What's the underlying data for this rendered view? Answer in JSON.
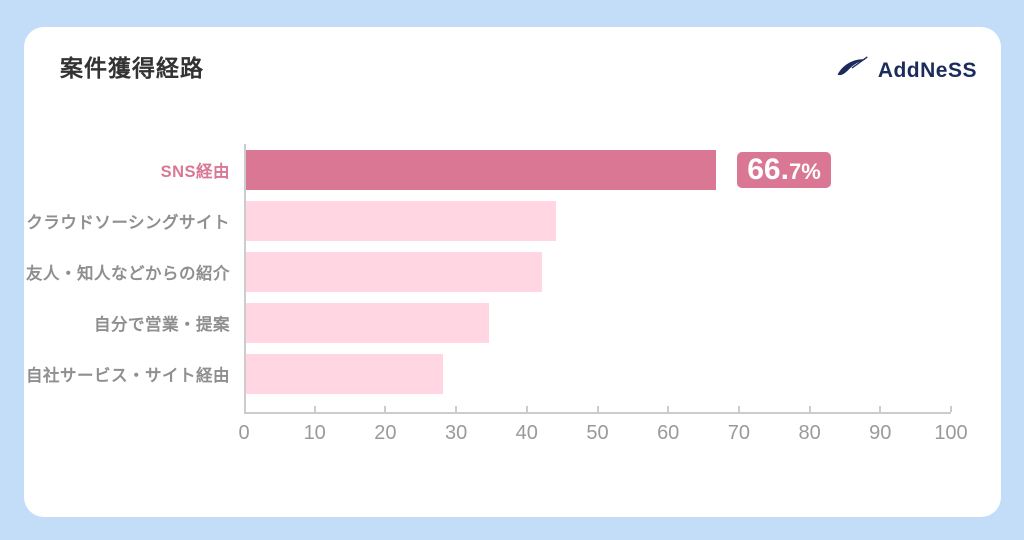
{
  "page": {
    "background": "#C3DDF9",
    "card_background": "#FFFFFF"
  },
  "header": {
    "title": "案件獲得経路",
    "logo_text": "AddNeSS",
    "logo_color": "#1B2B5B"
  },
  "chart_data": {
    "type": "bar",
    "orientation": "horizontal",
    "title": "案件獲得経路",
    "categories": [
      "SNS経由",
      "クラウドソーシングサイト",
      "友人・知人などからの紹介",
      "自分で営業・提案",
      "自社サービス・サイト経由"
    ],
    "values": [
      66.7,
      44,
      42,
      34.5,
      28
    ],
    "xlabel": "",
    "ylabel": "",
    "xlim": [
      0,
      100
    ],
    "xticks": [
      0,
      10,
      20,
      30,
      40,
      50,
      60,
      70,
      80,
      90,
      100
    ],
    "grid": false,
    "legend": false,
    "highlight_index": 0,
    "annotation": {
      "text": "66.7%",
      "main": "66.",
      "sub": "7%",
      "target_category": "SNS経由"
    },
    "colors": {
      "highlight": "#DA7795",
      "default": "#FFD6E2",
      "axis": "#CCCCCC",
      "tick_label": "#9A9A9A",
      "category_label": "#8F8F8F"
    }
  }
}
